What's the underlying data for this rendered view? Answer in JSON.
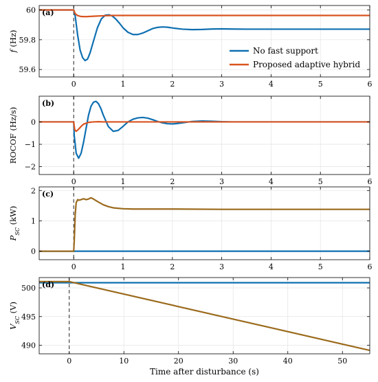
{
  "chart_data": [
    {
      "type": "line",
      "panel_label": "(a)",
      "ylabel_sym": "f",
      "ylabel_sub": "",
      "ylabel_unit": "(Hz)",
      "xlim": [
        -0.7,
        6
      ],
      "ylim": [
        59.55,
        60.03
      ],
      "xticks": [
        0,
        1,
        2,
        3,
        4,
        5,
        6
      ],
      "yticks": [
        59.6,
        59.8,
        60
      ],
      "ytick_labels": [
        "59.6",
        "59.8",
        "60"
      ],
      "show_xtick_labels": true,
      "disturbance_x": 0,
      "legend": {
        "position": "right",
        "entries": [
          "No fast support",
          "Proposed adaptive hybrid"
        ]
      },
      "series": [
        {
          "name": "No fast support",
          "color": "#0e6fb1",
          "x": [
            -0.7,
            0,
            0.03,
            0.08,
            0.13,
            0.18,
            0.23,
            0.28,
            0.33,
            0.4,
            0.48,
            0.56,
            0.64,
            0.72,
            0.78,
            0.85,
            0.93,
            1.0,
            1.1,
            1.2,
            1.3,
            1.4,
            1.5,
            1.6,
            1.7,
            1.8,
            1.9,
            2.0,
            2.2,
            2.4,
            2.6,
            2.8,
            3.0,
            3.2,
            3.5,
            4,
            5,
            6
          ],
          "y": [
            60,
            60,
            59.96,
            59.83,
            59.73,
            59.68,
            59.66,
            59.67,
            59.71,
            59.79,
            59.88,
            59.94,
            59.965,
            59.967,
            59.96,
            59.94,
            59.91,
            59.88,
            59.85,
            59.835,
            59.835,
            59.845,
            59.86,
            59.875,
            59.883,
            59.886,
            59.884,
            59.879,
            59.871,
            59.868,
            59.869,
            59.872,
            59.873,
            59.872,
            59.871,
            59.871,
            59.871,
            59.871
          ]
        },
        {
          "name": "Proposed adaptive hybrid",
          "color": "#d9531f",
          "x": [
            -0.7,
            0,
            0.03,
            0.08,
            0.15,
            0.25,
            0.4,
            0.6,
            0.8,
            1.0,
            1.5,
            2,
            3,
            4,
            5,
            6
          ],
          "y": [
            60,
            60,
            59.975,
            59.962,
            59.956,
            59.955,
            59.958,
            59.961,
            59.963,
            59.963,
            59.963,
            59.963,
            59.963,
            59.963,
            59.963,
            59.963
          ]
        }
      ]
    },
    {
      "type": "line",
      "panel_label": "(b)",
      "ylabel_sym": "ROCOF",
      "ylabel_sub": "",
      "ylabel_unit": "(Hz/s)",
      "xlim": [
        -0.7,
        6
      ],
      "ylim": [
        -2.35,
        1.15
      ],
      "xticks": [
        0,
        1,
        2,
        3,
        4,
        5,
        6
      ],
      "yticks": [
        -2,
        -1,
        0
      ],
      "ytick_labels": [
        "−2",
        "−1",
        "0"
      ],
      "show_xtick_labels": true,
      "disturbance_x": 0,
      "series": [
        {
          "name": "No fast support",
          "color": "#0e6fb1",
          "x": [
            -0.7,
            0,
            0.01,
            0.05,
            0.1,
            0.15,
            0.2,
            0.25,
            0.3,
            0.35,
            0.4,
            0.45,
            0.5,
            0.55,
            0.6,
            0.7,
            0.8,
            0.9,
            1.0,
            1.1,
            1.2,
            1.3,
            1.4,
            1.5,
            1.6,
            1.7,
            1.8,
            1.9,
            2.0,
            2.1,
            2.2,
            2.3,
            2.4,
            2.6,
            2.8,
            3.0,
            3.2,
            3.5,
            4,
            5,
            6
          ],
          "y": [
            0,
            0,
            -0.6,
            -1.4,
            -1.62,
            -1.4,
            -0.9,
            -0.3,
            0.3,
            0.7,
            0.88,
            0.92,
            0.82,
            0.6,
            0.3,
            -0.2,
            -0.42,
            -0.38,
            -0.2,
            0.0,
            0.12,
            0.18,
            0.2,
            0.17,
            0.1,
            0.02,
            -0.04,
            -0.08,
            -0.09,
            -0.07,
            -0.04,
            -0.01,
            0.02,
            0.04,
            0.03,
            0.01,
            0,
            0,
            0,
            0,
            0
          ]
        },
        {
          "name": "Proposed adaptive hybrid",
          "color": "#d9531f",
          "x": [
            -0.7,
            0,
            0.02,
            0.05,
            0.1,
            0.15,
            0.2,
            0.3,
            0.4,
            0.5,
            0.6,
            1,
            2,
            3,
            4,
            5,
            6
          ],
          "y": [
            0,
            0,
            -0.35,
            -0.42,
            -0.32,
            -0.2,
            -0.1,
            -0.02,
            0.0,
            0.01,
            0,
            0,
            0,
            0,
            0,
            0,
            0
          ]
        }
      ]
    },
    {
      "type": "line",
      "panel_label": "(c)",
      "ylabel_sym": "P",
      "ylabel_sub": "SC",
      "ylabel_unit": "(kW)",
      "xlim": [
        -0.7,
        6
      ],
      "ylim": [
        -0.28,
        2.12
      ],
      "xticks": [
        0,
        1,
        2,
        3,
        4,
        5,
        6
      ],
      "yticks": [
        0,
        1,
        2
      ],
      "ytick_labels": [
        "0",
        "1",
        "2"
      ],
      "show_xtick_labels": true,
      "disturbance_x": 0,
      "series": [
        {
          "name": "No fast support",
          "color": "#0e6fb1",
          "x": [
            -0.7,
            6
          ],
          "y": [
            0,
            0
          ]
        },
        {
          "name": "Proposed adaptive hybrid",
          "color": "#9b6a1c",
          "x": [
            -0.7,
            0,
            0.01,
            0.03,
            0.05,
            0.08,
            0.1,
            0.15,
            0.2,
            0.25,
            0.3,
            0.35,
            0.4,
            0.5,
            0.6,
            0.7,
            0.8,
            1.0,
            1.2,
            1.5,
            2,
            3,
            4,
            5,
            6
          ],
          "y": [
            0,
            0,
            0.3,
            1.2,
            1.6,
            1.7,
            1.68,
            1.7,
            1.73,
            1.7,
            1.72,
            1.76,
            1.72,
            1.62,
            1.53,
            1.47,
            1.43,
            1.4,
            1.39,
            1.39,
            1.39,
            1.38,
            1.38,
            1.38,
            1.38
          ]
        }
      ]
    },
    {
      "type": "line",
      "panel_label": "(d)",
      "ylabel_sym": "V",
      "ylabel_sub": "SC",
      "ylabel_unit": "(V)",
      "xlim": [
        -5.5,
        55
      ],
      "ylim": [
        488.5,
        501.8
      ],
      "xticks": [
        0,
        10,
        20,
        30,
        40,
        50
      ],
      "yticks": [
        490,
        495,
        500
      ],
      "ytick_labels": [
        "490",
        "495",
        "500"
      ],
      "show_xtick_labels": true,
      "disturbance_x": 0,
      "xlabel": "Time after disturbance (s)",
      "series": [
        {
          "name": "No fast support",
          "color": "#0e6fb1",
          "x": [
            -5.5,
            55
          ],
          "y": [
            500.9,
            500.9
          ]
        },
        {
          "name": "Proposed adaptive hybrid",
          "color": "#9b6a1c",
          "x": [
            -5.5,
            0,
            55
          ],
          "y": [
            501.1,
            501.1,
            489.1
          ]
        }
      ]
    }
  ]
}
